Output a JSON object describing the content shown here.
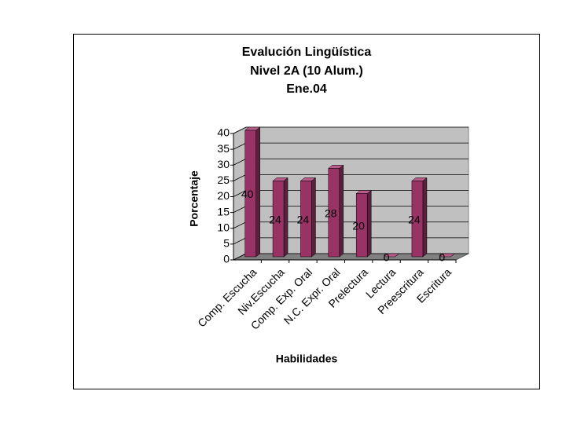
{
  "chart_data": {
    "type": "bar3d",
    "title": [
      "Evalución Lingüística",
      "Nivel 2A (10 Alum.)",
      "Ene.04"
    ],
    "x_label": "Habilidades",
    "y_label": "Porcentaje",
    "categories": [
      "Comp. Escucha",
      "Niv.Escucha",
      "Comp. Exp. Oral",
      "N.C. Expr. Oral",
      "Prelectura",
      "Lectura",
      "Preescritura",
      "Escritura"
    ],
    "values": [
      40,
      24,
      24,
      28,
      20,
      0,
      24,
      0
    ],
    "color": "#993366",
    "ylim": [
      0,
      40
    ],
    "yticks": [
      0,
      5,
      10,
      15,
      20,
      25,
      30,
      35,
      40
    ],
    "grid": true
  }
}
